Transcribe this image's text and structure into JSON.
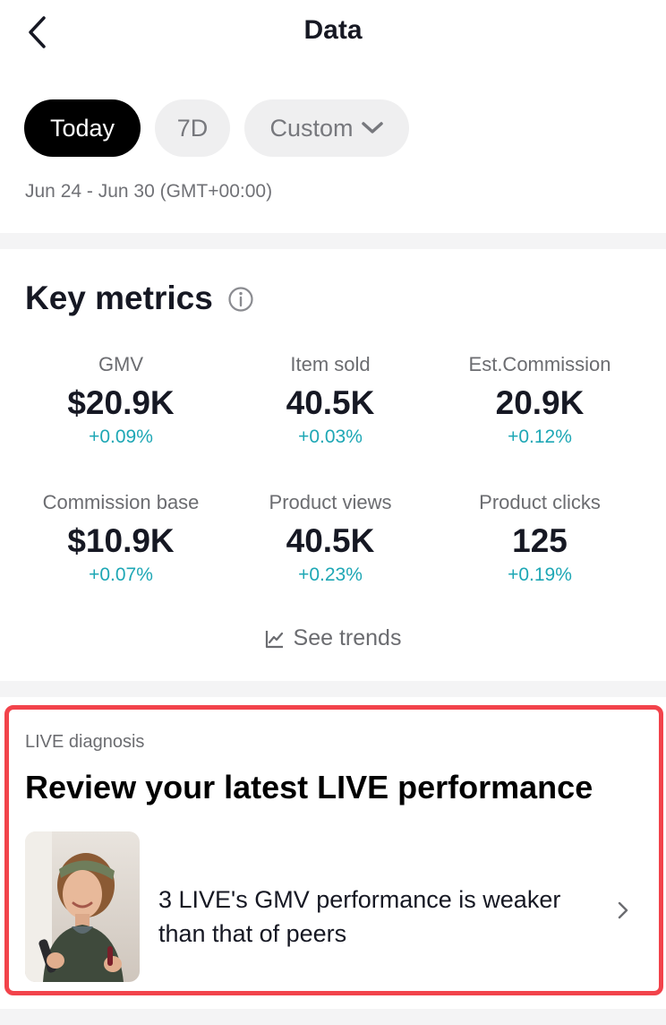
{
  "header": {
    "title": "Data"
  },
  "filters": {
    "chips": [
      {
        "label": "Today",
        "selected": true
      },
      {
        "label": "7D",
        "selected": false
      },
      {
        "label": "Custom",
        "selected": false
      }
    ],
    "date_range": "Jun 24 - Jun 30 (GMT+00:00)"
  },
  "key_metrics": {
    "title": "Key metrics",
    "items": [
      {
        "label": "GMV",
        "value": "$20.9K",
        "change": "+0.09%"
      },
      {
        "label": "Item sold",
        "value": "40.5K",
        "change": "+0.03%"
      },
      {
        "label": "Est.Commission",
        "value": "20.9K",
        "change": "+0.12%"
      },
      {
        "label": "Commission base",
        "value": "$10.9K",
        "change": "+0.07%"
      },
      {
        "label": "Product views",
        "value": "40.5K",
        "change": "+0.23%"
      },
      {
        "label": "Product clicks",
        "value": "125",
        "change": "+0.19%"
      }
    ],
    "see_trends_label": "See trends"
  },
  "live_diagnosis": {
    "label": "LIVE diagnosis",
    "title": "Review your latest LIVE performance",
    "message": "3 LIVE's GMV performance is weaker than that of peers"
  },
  "colors": {
    "positive_change": "#1ea7b5",
    "highlight_border": "#f2434b",
    "selected_chip": "#000000"
  }
}
